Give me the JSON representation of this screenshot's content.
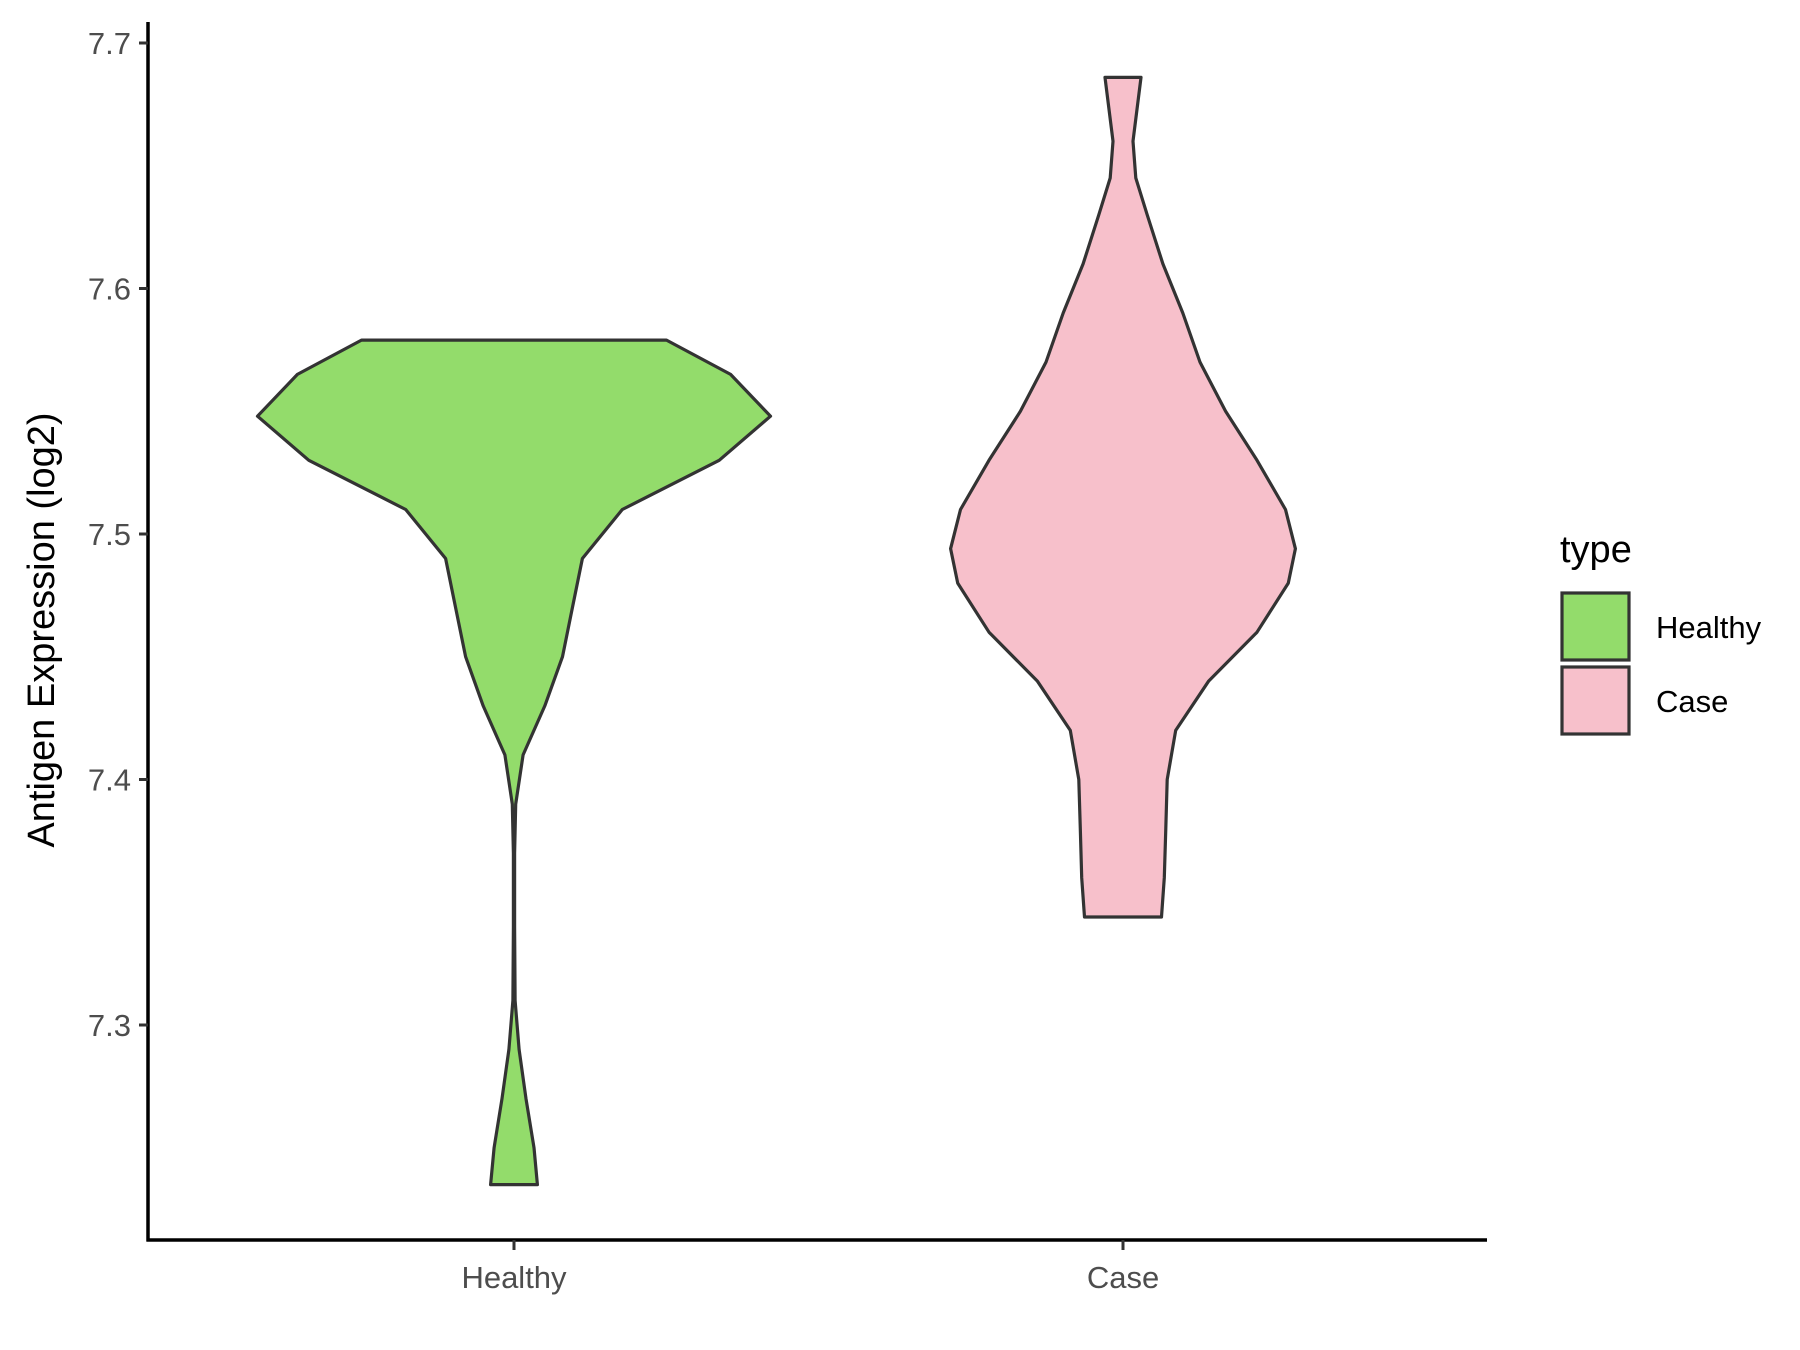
{
  "chart_data": {
    "type": "violin",
    "title": "",
    "xlabel": "",
    "ylabel": "Antigen Expression (log2)",
    "ylim": [
      7.21,
      7.71
    ],
    "yticks": [
      "7.3",
      "7.4",
      "7.5",
      "7.6",
      "7.7"
    ],
    "categories": [
      "Healthy",
      "Case"
    ],
    "series": [
      {
        "name": "Healthy",
        "color": "#93dc6b",
        "min": 7.235,
        "max": 7.579,
        "density_profile": [
          [
            7.235,
            0.082
          ],
          [
            7.25,
            0.07
          ],
          [
            7.27,
            0.042
          ],
          [
            7.29,
            0.018
          ],
          [
            7.31,
            0.004
          ],
          [
            7.34,
            0.002
          ],
          [
            7.37,
            0.002
          ],
          [
            7.39,
            0.006
          ],
          [
            7.41,
            0.032
          ],
          [
            7.43,
            0.108
          ],
          [
            7.45,
            0.17
          ],
          [
            7.47,
            0.205
          ],
          [
            7.49,
            0.24
          ],
          [
            7.51,
            0.38
          ],
          [
            7.53,
            0.72
          ],
          [
            7.548,
            0.9
          ],
          [
            7.565,
            0.76
          ],
          [
            7.579,
            0.535
          ]
        ]
      },
      {
        "name": "Case",
        "color": "#f7c0cb",
        "min": 7.344,
        "max": 7.686,
        "density_profile": [
          [
            7.344,
            0.135
          ],
          [
            7.36,
            0.145
          ],
          [
            7.38,
            0.15
          ],
          [
            7.4,
            0.155
          ],
          [
            7.42,
            0.185
          ],
          [
            7.44,
            0.3
          ],
          [
            7.46,
            0.47
          ],
          [
            7.48,
            0.58
          ],
          [
            7.494,
            0.605
          ],
          [
            7.51,
            0.57
          ],
          [
            7.53,
            0.47
          ],
          [
            7.55,
            0.36
          ],
          [
            7.57,
            0.27
          ],
          [
            7.59,
            0.21
          ],
          [
            7.61,
            0.14
          ],
          [
            7.63,
            0.085
          ],
          [
            7.645,
            0.045
          ],
          [
            7.66,
            0.035
          ],
          [
            7.686,
            0.063
          ]
        ]
      }
    ],
    "legend": {
      "title": "type",
      "position": "right",
      "entries": [
        "Healthy",
        "Case"
      ]
    }
  }
}
